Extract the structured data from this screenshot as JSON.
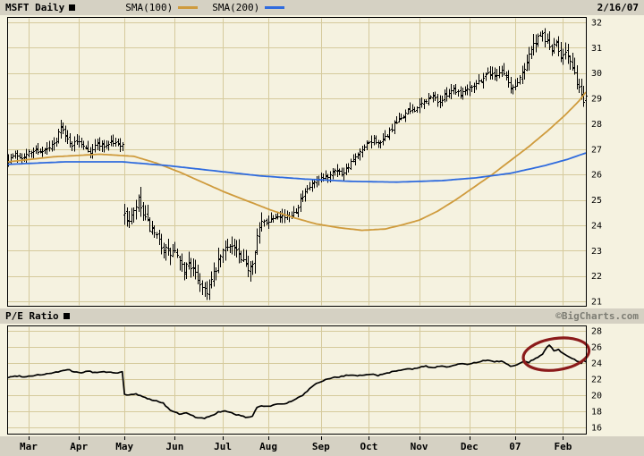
{
  "header": {
    "symbol_label": "MSFT Daily",
    "date": "2/16/07",
    "legend": {
      "sma100": {
        "label": "SMA(100)",
        "color": "#cf9b3d"
      },
      "sma200": {
        "label": "SMA(200)",
        "color": "#2f6bde"
      }
    }
  },
  "pe_bar": {
    "label": "P/E Ratio",
    "copyright": "©BigCharts.com"
  },
  "colors": {
    "page_bg": "#f5f2e0",
    "bar_bg": "#d5d1c3",
    "grid": "#d5ca9c",
    "frame": "#000000",
    "price_bar": "#000000",
    "pe_line": "#000000",
    "annotation": "#8b1a1a"
  },
  "chart_data": [
    {
      "type": "ohlc-bar",
      "title": "MSFT Daily price with SMA(100) and SMA(200)",
      "ylim": [
        21,
        32
      ],
      "yticks": [
        21,
        22,
        23,
        24,
        25,
        26,
        27,
        28,
        29,
        30,
        31,
        32
      ],
      "grid": true,
      "x_axis": {
        "labels": [
          "Mar",
          "Apr",
          "May",
          "Jun",
          "Jul",
          "Aug",
          "Sep",
          "Oct",
          "Nov",
          "Dec",
          "07",
          "Feb"
        ],
        "month_start_days": [
          9,
          31,
          51,
          73,
          94,
          114,
          137,
          158,
          180,
          202,
          222,
          243
        ],
        "total_days": 254
      },
      "price_anchors": [
        [
          0,
          26.6
        ],
        [
          3,
          26.8
        ],
        [
          6,
          26.7
        ],
        [
          9,
          26.85
        ],
        [
          12,
          27.0
        ],
        [
          15,
          26.9
        ],
        [
          18,
          27.05
        ],
        [
          21,
          27.3
        ],
        [
          23,
          28.0
        ],
        [
          25,
          27.5
        ],
        [
          28,
          27.2
        ],
        [
          31,
          27.35
        ],
        [
          34,
          27.1
        ],
        [
          36,
          26.9
        ],
        [
          39,
          27.25
        ],
        [
          42,
          27.15
        ],
        [
          45,
          27.3
        ],
        [
          48,
          27.2
        ],
        [
          50,
          27.25
        ],
        [
          51,
          24.35
        ],
        [
          53,
          24.2
        ],
        [
          55,
          24.5
        ],
        [
          57,
          25.0
        ],
        [
          59,
          24.4
        ],
        [
          62,
          23.9
        ],
        [
          65,
          23.5
        ],
        [
          68,
          23.1
        ],
        [
          71,
          22.9
        ],
        [
          73,
          23.0
        ],
        [
          75,
          22.5
        ],
        [
          77,
          22.2
        ],
        [
          79,
          22.6
        ],
        [
          81,
          22.2
        ],
        [
          83,
          21.9
        ],
        [
          85,
          21.6
        ],
        [
          87,
          21.45
        ],
        [
          89,
          21.8
        ],
        [
          91,
          22.3
        ],
        [
          93,
          22.8
        ],
        [
          95,
          23.1
        ],
        [
          97,
          23.3
        ],
        [
          100,
          23.0
        ],
        [
          102,
          22.6
        ],
        [
          105,
          22.35
        ],
        [
          107,
          22.6
        ],
        [
          109,
          23.6
        ],
        [
          111,
          24.1
        ],
        [
          114,
          24.2
        ],
        [
          118,
          24.45
        ],
        [
          122,
          24.3
        ],
        [
          126,
          24.6
        ],
        [
          128,
          25.0
        ],
        [
          131,
          25.4
        ],
        [
          134,
          25.7
        ],
        [
          137,
          25.8
        ],
        [
          140,
          25.95
        ],
        [
          143,
          26.25
        ],
        [
          146,
          26.05
        ],
        [
          149,
          26.35
        ],
        [
          152,
          26.65
        ],
        [
          155,
          26.95
        ],
        [
          158,
          27.25
        ],
        [
          160,
          27.4
        ],
        [
          163,
          27.2
        ],
        [
          166,
          27.6
        ],
        [
          169,
          27.95
        ],
        [
          172,
          28.25
        ],
        [
          175,
          28.5
        ],
        [
          178,
          28.6
        ],
        [
          180,
          28.7
        ],
        [
          183,
          28.95
        ],
        [
          186,
          29.1
        ],
        [
          189,
          28.85
        ],
        [
          192,
          29.2
        ],
        [
          195,
          29.4
        ],
        [
          198,
          29.2
        ],
        [
          201,
          29.45
        ],
        [
          204,
          29.55
        ],
        [
          207,
          29.75
        ],
        [
          210,
          30.05
        ],
        [
          213,
          29.9
        ],
        [
          216,
          30.15
        ],
        [
          218,
          29.85
        ],
        [
          220,
          29.4
        ],
        [
          222,
          29.5
        ],
        [
          224,
          29.85
        ],
        [
          226,
          30.25
        ],
        [
          228,
          30.8
        ],
        [
          230,
          31.1
        ],
        [
          232,
          31.35
        ],
        [
          234,
          31.5
        ],
        [
          236,
          31.2
        ],
        [
          238,
          30.95
        ],
        [
          240,
          31.15
        ],
        [
          242,
          30.7
        ],
        [
          244,
          30.95
        ],
        [
          246,
          30.4
        ],
        [
          248,
          29.9
        ],
        [
          250,
          29.45
        ],
        [
          251,
          29.1
        ],
        [
          252,
          28.9
        ],
        [
          253,
          29.2
        ]
      ],
      "series": [
        {
          "name": "SMA(100)",
          "color": "#cf9b3d",
          "anchors": [
            [
              0,
              26.5
            ],
            [
              20,
              26.7
            ],
            [
              40,
              26.8
            ],
            [
              55,
              26.72
            ],
            [
              65,
              26.45
            ],
            [
              75,
              26.1
            ],
            [
              85,
              25.7
            ],
            [
              95,
              25.3
            ],
            [
              105,
              24.95
            ],
            [
              115,
              24.6
            ],
            [
              125,
              24.3
            ],
            [
              135,
              24.05
            ],
            [
              145,
              23.9
            ],
            [
              155,
              23.8
            ],
            [
              165,
              23.85
            ],
            [
              172,
              24.0
            ],
            [
              180,
              24.2
            ],
            [
              188,
              24.55
            ],
            [
              196,
              25.0
            ],
            [
              204,
              25.5
            ],
            [
              212,
              26.0
            ],
            [
              220,
              26.55
            ],
            [
              228,
              27.1
            ],
            [
              236,
              27.7
            ],
            [
              244,
              28.35
            ],
            [
              250,
              28.9
            ],
            [
              253,
              29.25
            ]
          ]
        },
        {
          "name": "SMA(200)",
          "color": "#2f6bde",
          "anchors": [
            [
              0,
              26.4
            ],
            [
              25,
              26.5
            ],
            [
              50,
              26.5
            ],
            [
              70,
              26.35
            ],
            [
              90,
              26.15
            ],
            [
              110,
              25.95
            ],
            [
              130,
              25.82
            ],
            [
              150,
              25.73
            ],
            [
              170,
              25.7
            ],
            [
              190,
              25.76
            ],
            [
              205,
              25.87
            ],
            [
              220,
              26.05
            ],
            [
              235,
              26.35
            ],
            [
              245,
              26.6
            ],
            [
              253,
              26.85
            ]
          ]
        }
      ]
    },
    {
      "type": "line",
      "title": "P/E Ratio",
      "ylim": [
        16,
        28
      ],
      "yticks": [
        16,
        18,
        20,
        22,
        24,
        26,
        28
      ],
      "grid": true,
      "anchors": [
        [
          0,
          22.2
        ],
        [
          4,
          22.4
        ],
        [
          8,
          22.3
        ],
        [
          12,
          22.5
        ],
        [
          16,
          22.6
        ],
        [
          20,
          22.8
        ],
        [
          24,
          23.0
        ],
        [
          26,
          23.2
        ],
        [
          29,
          22.9
        ],
        [
          32,
          22.8
        ],
        [
          35,
          23.0
        ],
        [
          38,
          22.8
        ],
        [
          42,
          22.9
        ],
        [
          46,
          22.8
        ],
        [
          50,
          22.85
        ],
        [
          51,
          20.1
        ],
        [
          53,
          20.0
        ],
        [
          56,
          20.15
        ],
        [
          59,
          19.8
        ],
        [
          62,
          19.5
        ],
        [
          65,
          19.3
        ],
        [
          68,
          19.0
        ],
        [
          70,
          18.4
        ],
        [
          72,
          18.0
        ],
        [
          74,
          17.8
        ],
        [
          76,
          17.6
        ],
        [
          78,
          17.85
        ],
        [
          80,
          17.5
        ],
        [
          82,
          17.3
        ],
        [
          84,
          17.2
        ],
        [
          86,
          17.1
        ],
        [
          88,
          17.35
        ],
        [
          90,
          17.6
        ],
        [
          92,
          17.9
        ],
        [
          95,
          18.0
        ],
        [
          97,
          17.85
        ],
        [
          100,
          17.6
        ],
        [
          103,
          17.35
        ],
        [
          105,
          17.2
        ],
        [
          107,
          17.45
        ],
        [
          109,
          18.5
        ],
        [
          111,
          18.7
        ],
        [
          114,
          18.6
        ],
        [
          117,
          18.85
        ],
        [
          120,
          18.9
        ],
        [
          123,
          19.1
        ],
        [
          126,
          19.5
        ],
        [
          129,
          20.0
        ],
        [
          131,
          20.5
        ],
        [
          133,
          21.0
        ],
        [
          135,
          21.4
        ],
        [
          137,
          21.7
        ],
        [
          139,
          21.9
        ],
        [
          141,
          22.1
        ],
        [
          144,
          22.25
        ],
        [
          147,
          22.4
        ],
        [
          150,
          22.5
        ],
        [
          153,
          22.35
        ],
        [
          156,
          22.55
        ],
        [
          159,
          22.65
        ],
        [
          162,
          22.45
        ],
        [
          165,
          22.7
        ],
        [
          168,
          22.9
        ],
        [
          171,
          23.1
        ],
        [
          174,
          23.3
        ],
        [
          177,
          23.2
        ],
        [
          180,
          23.45
        ],
        [
          183,
          23.6
        ],
        [
          186,
          23.4
        ],
        [
          189,
          23.65
        ],
        [
          192,
          23.5
        ],
        [
          195,
          23.7
        ],
        [
          198,
          23.9
        ],
        [
          201,
          23.8
        ],
        [
          204,
          24.0
        ],
        [
          207,
          24.2
        ],
        [
          210,
          24.35
        ],
        [
          213,
          24.1
        ],
        [
          216,
          24.3
        ],
        [
          218,
          23.9
        ],
        [
          220,
          23.6
        ],
        [
          222,
          23.7
        ],
        [
          224,
          24.0
        ],
        [
          226,
          24.2
        ],
        [
          228,
          24.1
        ],
        [
          230,
          24.45
        ],
        [
          232,
          24.7
        ],
        [
          234,
          25.1
        ],
        [
          235,
          25.6
        ],
        [
          236,
          26.0
        ],
        [
          237,
          26.2
        ],
        [
          238,
          25.9
        ],
        [
          239,
          25.5
        ],
        [
          241,
          25.7
        ],
        [
          243,
          25.2
        ],
        [
          245,
          24.9
        ],
        [
          247,
          24.6
        ],
        [
          249,
          24.3
        ],
        [
          250,
          24.1
        ],
        [
          251,
          24.0
        ],
        [
          252,
          24.35
        ],
        [
          253,
          24.15
        ]
      ],
      "annotation_ellipse": {
        "center_day": 240,
        "center_value": 25.1,
        "rx_days": 14.5,
        "ry_value": 1.95,
        "rotate_deg": -8,
        "color": "#8b1a1a",
        "note": "circle highlighting recent P/E spike"
      }
    }
  ]
}
